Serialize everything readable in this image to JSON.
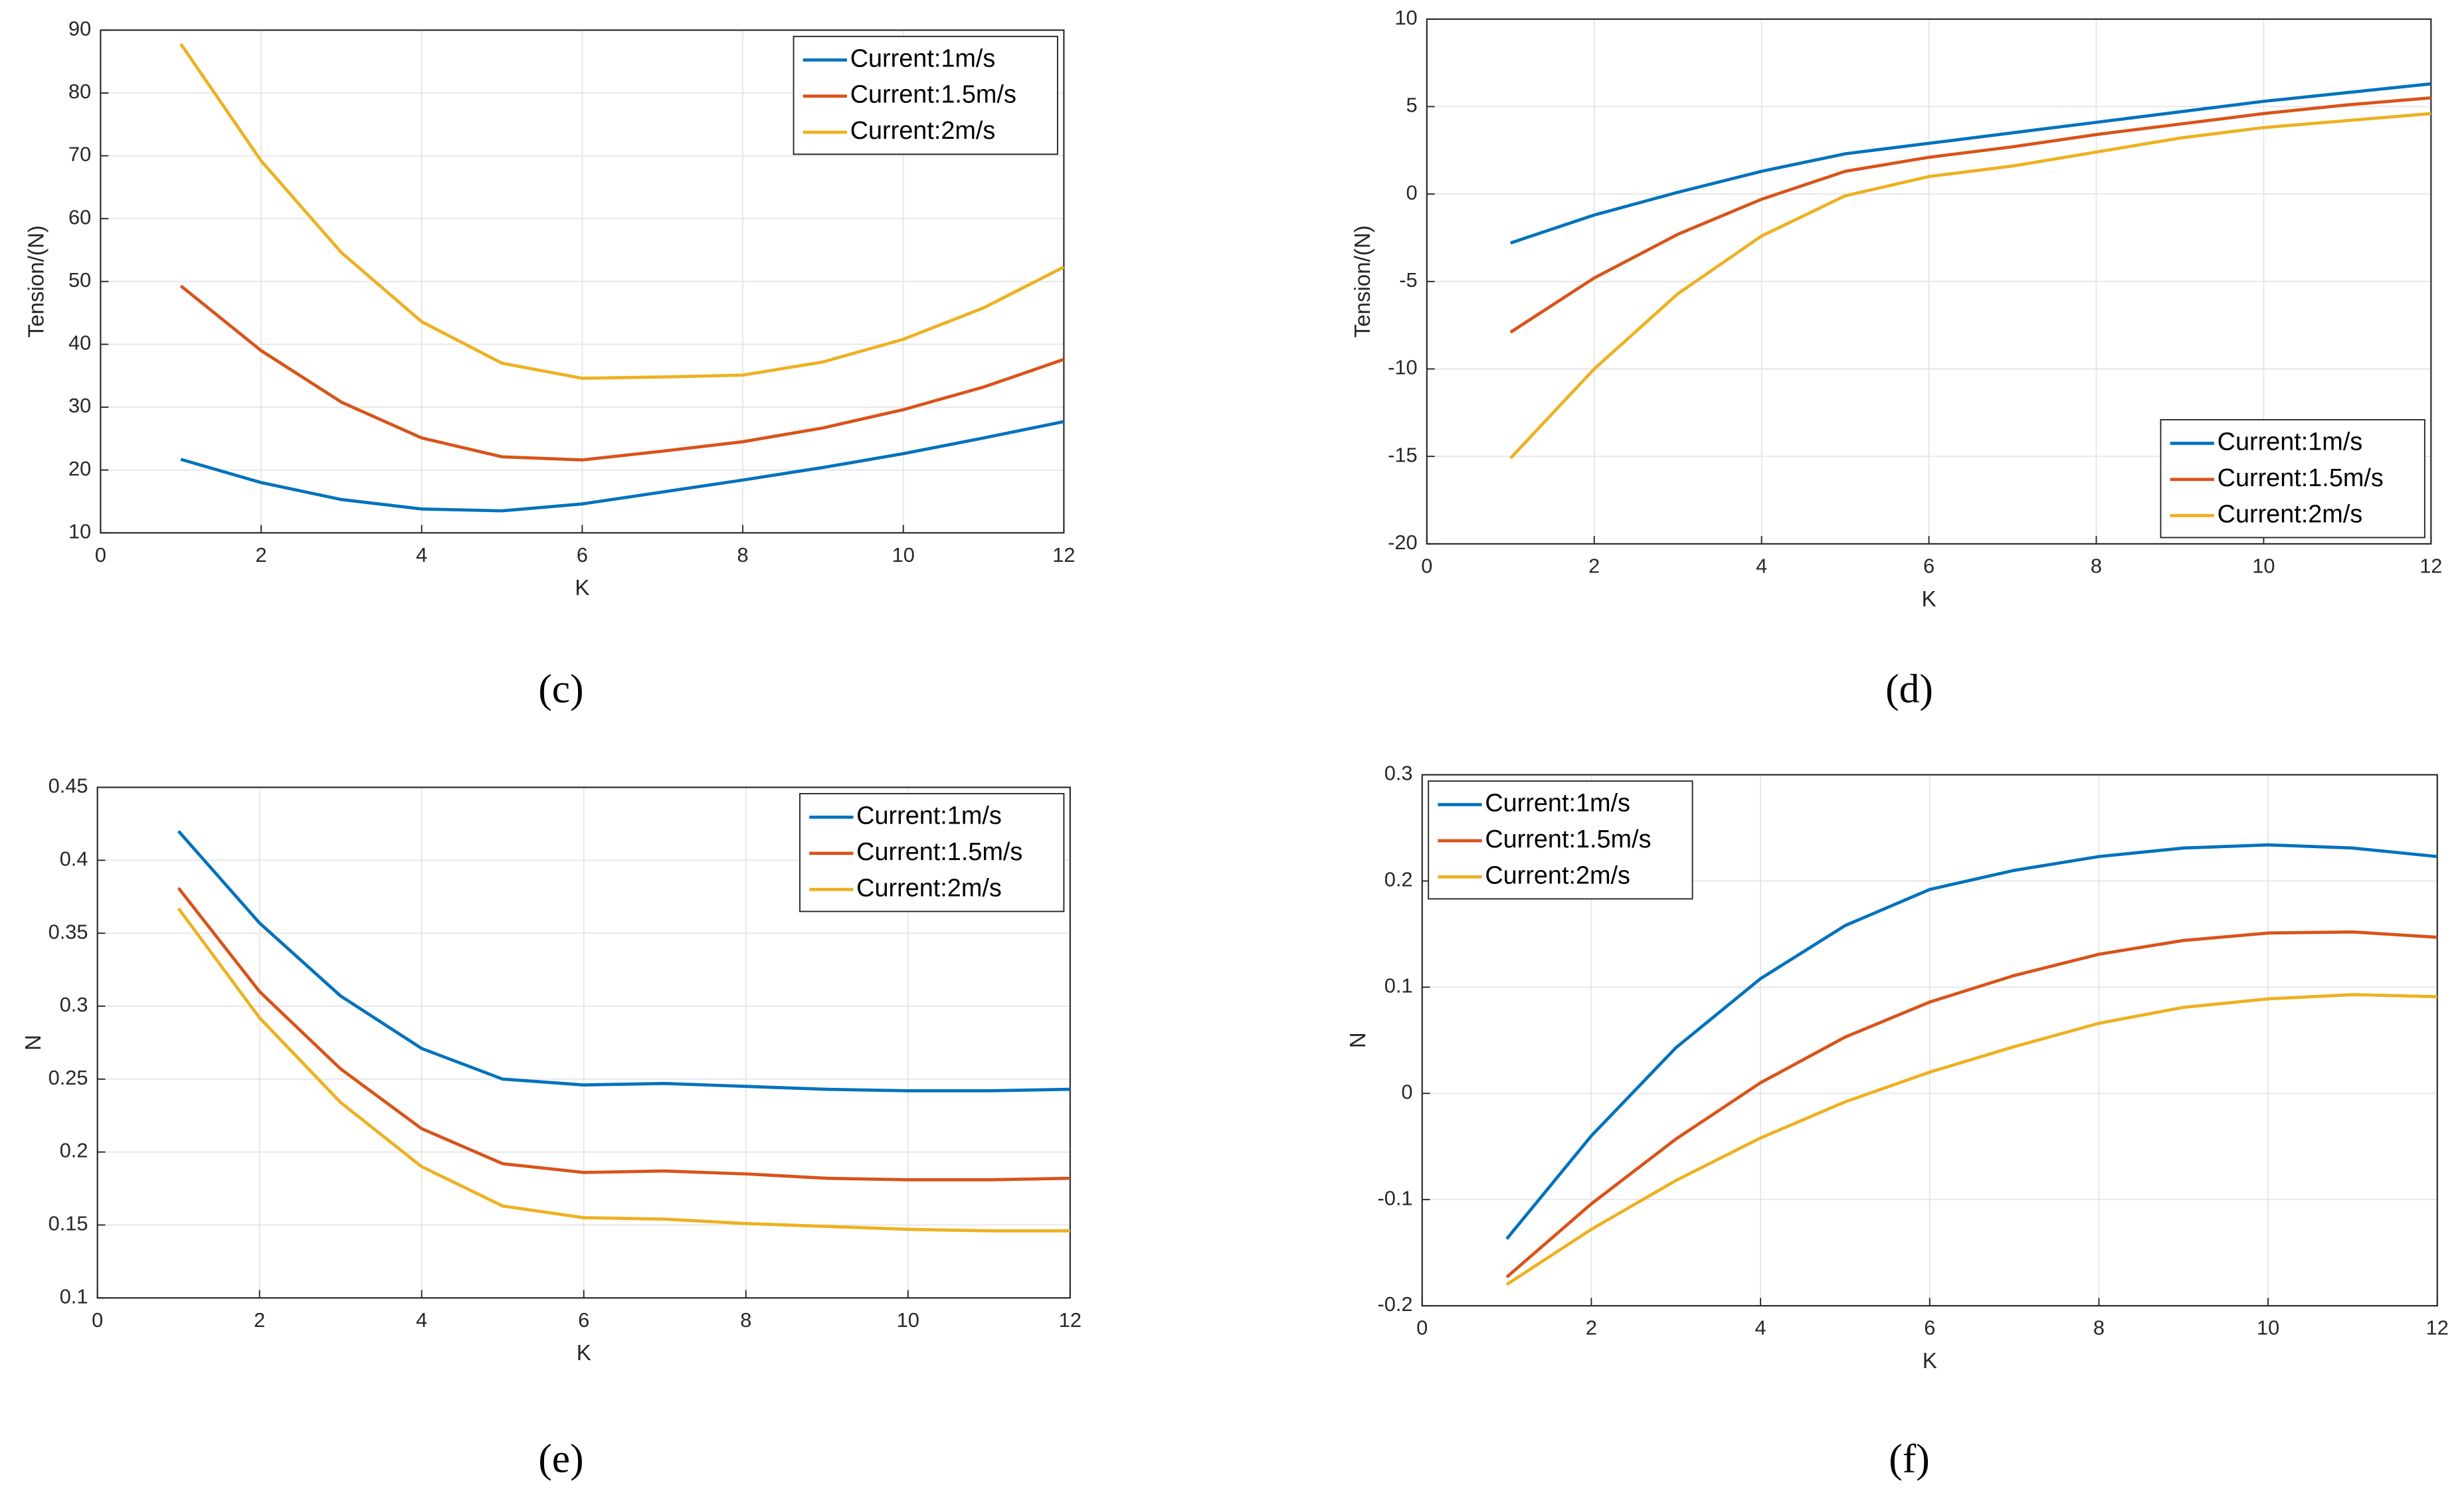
{
  "chart_data": [
    {
      "type": "line",
      "caption": "(c)",
      "xlabel": "K",
      "ylabel": "Tension/(N)",
      "x": [
        1,
        2,
        3,
        4,
        5,
        6,
        7,
        8,
        9,
        10,
        11,
        12
      ],
      "xlim": [
        0,
        12
      ],
      "xticks": [
        0,
        2,
        4,
        6,
        8,
        10,
        12
      ],
      "ylim": [
        10,
        90
      ],
      "yticks": [
        10,
        20,
        30,
        40,
        50,
        60,
        70,
        80,
        90
      ],
      "grid": true,
      "legend": "upper right",
      "series": [
        {
          "name": "Current:1m/s",
          "color": "#0072BD",
          "values": [
            21.7,
            18,
            15.3,
            13.8,
            13.5,
            14.6,
            16.5,
            18.4,
            20.4,
            22.6,
            25.1,
            27.7
          ]
        },
        {
          "name": "Current:1.5m/s",
          "color": "#D95319",
          "values": [
            49.3,
            39,
            30.8,
            25.1,
            22.1,
            21.6,
            23,
            24.5,
            26.7,
            29.6,
            33.2,
            37.6
          ]
        },
        {
          "name": "Current:2m/s",
          "color": "#EDB120",
          "values": [
            87.8,
            69.2,
            54.6,
            43.6,
            37,
            34.6,
            34.8,
            35.1,
            37.2,
            40.8,
            45.8,
            52.3
          ]
        }
      ]
    },
    {
      "type": "line",
      "caption": "(d)",
      "xlabel": "K",
      "ylabel": "Tension/(N)",
      "x": [
        1,
        2,
        3,
        4,
        5,
        6,
        7,
        8,
        9,
        10,
        11,
        12
      ],
      "xlim": [
        0,
        12
      ],
      "xticks": [
        0,
        2,
        4,
        6,
        8,
        10,
        12
      ],
      "ylim": [
        -20,
        10
      ],
      "yticks": [
        -20,
        -15,
        -10,
        -5,
        0,
        5,
        10
      ],
      "grid": true,
      "legend": "lower right",
      "series": [
        {
          "name": "Current:1m/s",
          "color": "#0072BD",
          "values": [
            -2.8,
            -1.2,
            0.1,
            1.3,
            2.3,
            2.9,
            3.5,
            4.1,
            4.7,
            5.3,
            5.8,
            6.3
          ]
        },
        {
          "name": "Current:1.5m/s",
          "color": "#D95319",
          "values": [
            -7.9,
            -4.8,
            -2.3,
            -0.3,
            1.3,
            2.1,
            2.7,
            3.4,
            4.0,
            4.6,
            5.1,
            5.5
          ]
        },
        {
          "name": "Current:2m/s",
          "color": "#EDB120",
          "values": [
            -15.1,
            -10,
            -5.7,
            -2.4,
            -0.1,
            1.0,
            1.6,
            2.4,
            3.2,
            3.8,
            4.2,
            4.6
          ]
        }
      ]
    },
    {
      "type": "line",
      "caption": "(e)",
      "xlabel": "K",
      "ylabel": "N",
      "x": [
        1,
        2,
        3,
        4,
        5,
        6,
        7,
        8,
        9,
        10,
        11,
        12
      ],
      "xlim": [
        0,
        12
      ],
      "xticks": [
        0,
        2,
        4,
        6,
        8,
        10,
        12
      ],
      "ylim": [
        0.1,
        0.45
      ],
      "yticks": [
        0.1,
        0.15,
        0.2,
        0.25,
        0.3,
        0.35,
        0.4,
        0.45
      ],
      "grid": true,
      "legend": "upper right",
      "series": [
        {
          "name": "Current:1m/s",
          "color": "#0072BD",
          "values": [
            0.42,
            0.357,
            0.307,
            0.271,
            0.25,
            0.246,
            0.247,
            0.245,
            0.243,
            0.242,
            0.242,
            0.243
          ]
        },
        {
          "name": "Current:1.5m/s",
          "color": "#D95319",
          "values": [
            0.381,
            0.31,
            0.257,
            0.216,
            0.192,
            0.186,
            0.187,
            0.185,
            0.182,
            0.181,
            0.181,
            0.182
          ]
        },
        {
          "name": "Current:2m/s",
          "color": "#EDB120",
          "values": [
            0.367,
            0.292,
            0.234,
            0.19,
            0.163,
            0.155,
            0.154,
            0.151,
            0.149,
            0.147,
            0.146,
            0.146
          ]
        }
      ]
    },
    {
      "type": "line",
      "caption": "(f)",
      "xlabel": "K",
      "ylabel": "N",
      "x": [
        1,
        2,
        3,
        4,
        5,
        6,
        7,
        8,
        9,
        10,
        11,
        12
      ],
      "xlim": [
        0,
        12
      ],
      "xticks": [
        0,
        2,
        4,
        6,
        8,
        10,
        12
      ],
      "ylim": [
        -0.2,
        0.3
      ],
      "yticks": [
        -0.2,
        -0.1,
        0,
        0.1,
        0.2,
        0.3
      ],
      "grid": true,
      "legend": "upper left",
      "series": [
        {
          "name": "Current:1m/s",
          "color": "#0072BD",
          "values": [
            -0.137,
            -0.04,
            0.043,
            0.108,
            0.158,
            0.192,
            0.21,
            0.223,
            0.231,
            0.234,
            0.231,
            0.223
          ]
        },
        {
          "name": "Current:1.5m/s",
          "color": "#D95319",
          "values": [
            -0.173,
            -0.104,
            -0.043,
            0.01,
            0.053,
            0.086,
            0.111,
            0.131,
            0.144,
            0.151,
            0.152,
            0.147
          ]
        },
        {
          "name": "Current:2m/s",
          "color": "#EDB120",
          "values": [
            -0.18,
            -0.128,
            -0.082,
            -0.042,
            -0.008,
            0.02,
            0.044,
            0.066,
            0.081,
            0.089,
            0.093,
            0.091
          ]
        }
      ]
    }
  ]
}
